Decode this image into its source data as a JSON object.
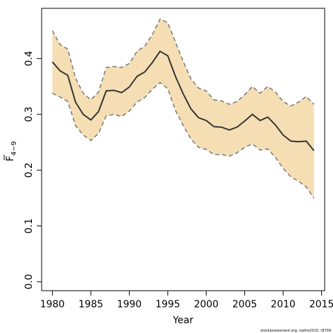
{
  "chart_data": {
    "type": "line",
    "xlabel": "Year",
    "ylabel_main": "F",
    "ylabel_sub": "4−9",
    "xlim": [
      1978.6,
      2015.4
    ],
    "ylim": [
      -0.016,
      0.49
    ],
    "x_ticks": [
      1980,
      1985,
      1990,
      1995,
      2000,
      2005,
      2010,
      2015
    ],
    "x_tick_labels": [
      "1980",
      "1985",
      "1990",
      "1995",
      "2000",
      "2005",
      "2010",
      "2015"
    ],
    "y_ticks": [
      0.0,
      0.1,
      0.2,
      0.3,
      0.4
    ],
    "y_tick_labels": [
      "0.0",
      "0.1",
      "0.2",
      "0.3",
      "0.4"
    ],
    "grid": false,
    "band_color": "#f5deb3",
    "line_color": "#333333",
    "bound_color": "#777777",
    "credit": "stockassessment.org, isathe2015, r8709",
    "x": [
      1980,
      1981,
      1982,
      1983,
      1984,
      1985,
      1986,
      1987,
      1988,
      1989,
      1990,
      1991,
      1992,
      1993,
      1994,
      1995,
      1996,
      1997,
      1998,
      1999,
      2000,
      2001,
      2002,
      2003,
      2004,
      2005,
      2006,
      2007,
      2008,
      2009,
      2010,
      2011,
      2012,
      2013,
      2014
    ],
    "series": [
      {
        "role": "estimate",
        "values": [
          0.394,
          0.378,
          0.37,
          0.322,
          0.3,
          0.29,
          0.305,
          0.342,
          0.343,
          0.339,
          0.349,
          0.368,
          0.376,
          0.393,
          0.413,
          0.405,
          0.368,
          0.337,
          0.31,
          0.294,
          0.289,
          0.278,
          0.277,
          0.272,
          0.277,
          0.288,
          0.3,
          0.289,
          0.295,
          0.281,
          0.263,
          0.252,
          0.251,
          0.252,
          0.235
        ]
      },
      {
        "role": "upper",
        "values": [
          0.45,
          0.425,
          0.417,
          0.365,
          0.338,
          0.326,
          0.34,
          0.384,
          0.386,
          0.384,
          0.391,
          0.413,
          0.422,
          0.443,
          0.471,
          0.464,
          0.43,
          0.395,
          0.364,
          0.347,
          0.342,
          0.326,
          0.324,
          0.318,
          0.323,
          0.335,
          0.35,
          0.338,
          0.35,
          0.34,
          0.323,
          0.315,
          0.322,
          0.332,
          0.318
        ]
      },
      {
        "role": "lower",
        "values": [
          0.338,
          0.331,
          0.323,
          0.28,
          0.263,
          0.253,
          0.266,
          0.297,
          0.3,
          0.296,
          0.306,
          0.322,
          0.33,
          0.345,
          0.357,
          0.346,
          0.307,
          0.28,
          0.256,
          0.241,
          0.237,
          0.228,
          0.228,
          0.225,
          0.231,
          0.241,
          0.247,
          0.236,
          0.238,
          0.223,
          0.203,
          0.188,
          0.18,
          0.17,
          0.15
        ]
      }
    ]
  }
}
